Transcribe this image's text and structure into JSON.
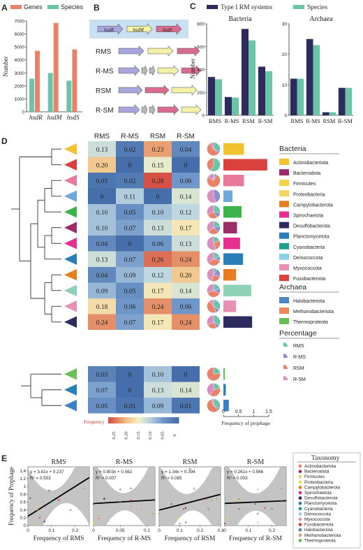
{
  "colors": {
    "genes": "#e8826a",
    "species": "#6cc4a8",
    "type1": "#2d2a5e",
    "hsdR": "#a8a6dc",
    "hsdM": "#f3f1a6",
    "hsdS": "#d96b8e",
    "tiny": "#b8b8b8",
    "shade": "#c9dff2"
  },
  "panelA": {
    "letter": "A",
    "legend": [
      "Genes",
      "Species"
    ],
    "ylabel": "Number",
    "yticks": [
      "0",
      "1000",
      "2000",
      "3000",
      "4000",
      "5000",
      "6000",
      "7000"
    ],
    "chart_data": {
      "type": "bar",
      "categories": [
        "hsdR",
        "hsdM",
        "hsdS"
      ],
      "series": [
        {
          "name": "Genes",
          "values": [
            4700,
            6850,
            4800
          ]
        },
        {
          "name": "Species",
          "values": [
            2550,
            3000,
            2400
          ]
        }
      ],
      "ylim": [
        0,
        7000
      ]
    }
  },
  "panelB": {
    "letter": "B",
    "genes": [
      "hsdR",
      "hsdM",
      "hsdS"
    ],
    "rows": [
      "RMS",
      "R-MS",
      "RSM",
      "R-SM"
    ]
  },
  "panelC": {
    "letter": "C",
    "legend": [
      "Type I RM systems",
      "Species"
    ],
    "ylabel": "Number",
    "bacteria": {
      "title": "Bacteria",
      "yticks": [
        "0",
        "200",
        "400",
        "600",
        "800"
      ],
      "chart_data": {
        "type": "bar",
        "categories": [
          "RMS",
          "R-MS",
          "RSM",
          "R-SM"
        ],
        "series": [
          {
            "name": "Type I RM systems",
            "values": [
              335,
              160,
              755,
              425
            ]
          },
          {
            "name": "Species",
            "values": [
              315,
              155,
              655,
              385
            ]
          }
        ],
        "ylim": [
          0,
          800
        ]
      }
    },
    "archaea": {
      "title": "Archaea",
      "yticks": [
        "0",
        "10",
        "20",
        "30"
      ],
      "chart_data": {
        "type": "bar",
        "categories": [
          "RMS",
          "R-MS",
          "RSM",
          "R-SM"
        ],
        "series": [
          {
            "name": "Type I RM systems",
            "values": [
              12,
              25,
              1,
              9
            ]
          },
          {
            "name": "Species",
            "values": [
              12,
              23,
              1,
              9
            ]
          }
        ],
        "ylim": [
          0,
          30
        ]
      }
    }
  },
  "panelD": {
    "letter": "D",
    "columns": [
      "RMS",
      "R-MS",
      "RSM",
      "R-SM"
    ],
    "chart_data": {
      "type": "heatmap",
      "rows": [
        {
          "taxon": "Actinobacteriota",
          "values": [
            0.13,
            0.02,
            0.23,
            0.04
          ],
          "labels": [
            "0.13",
            "0.02",
            "0.23",
            "0.04"
          ],
          "prophage": 0.68,
          "color": "#f1c232"
        },
        {
          "taxon": "Fusobacteriota",
          "values": [
            0.2,
            0.0,
            0.15,
            0.0
          ],
          "labels": [
            "0.20",
            "0",
            "0.15",
            "0"
          ],
          "prophage": 1.45,
          "color": "#d9413f"
        },
        {
          "taxon": "Myxococcota",
          "values": [
            0.01,
            0.02,
            0.28,
            0.06
          ],
          "labels": [
            "0.01",
            "0.02",
            "0.28",
            "0.06"
          ],
          "prophage": 0.68,
          "color": "#e8799a"
        },
        {
          "taxon": "Halobacteriota",
          "values": [
            0.0,
            0.11,
            0.0,
            0.14
          ],
          "labels": [
            "0",
            "0.11",
            "0",
            "0.14"
          ],
          "prophage": 0.3,
          "color": "#6fa8dc"
        },
        {
          "taxon": "Thermoproteota",
          "values": [
            0.1,
            0.05,
            0.1,
            0.12
          ],
          "labels": [
            "0.10",
            "0.05",
            "0.10",
            "0.12"
          ],
          "prophage": 0.6,
          "color": "#3cb44b"
        },
        {
          "taxon": "Bacteroidota",
          "values": [
            0.1,
            0.07,
            0.13,
            0.17
          ],
          "labels": [
            "0.10",
            "0.07",
            "0.13",
            "0.17"
          ],
          "prophage": 0.45,
          "color": "#9b2d6b"
        },
        {
          "taxon": "Spirochaetota",
          "values": [
            0.04,
            0.0,
            0.06,
            0.13
          ],
          "labels": [
            "0.04",
            "0",
            "0.06",
            "0.13"
          ],
          "prophage": 0.55,
          "color": "#e6308f"
        },
        {
          "taxon": "Planctomycetota",
          "values": [
            0.13,
            0.07,
            0.26,
            0.24
          ],
          "labels": [
            "0.13",
            "0.07",
            "0.26",
            "0.24"
          ],
          "prophage": 0.65,
          "color": "#2a7fb8"
        },
        {
          "taxon": "Campylobacterota",
          "values": [
            0.04,
            0.09,
            0.12,
            0.2
          ],
          "labels": [
            "0.04",
            "0.09",
            "0.12",
            "0.20"
          ],
          "prophage": 0.42,
          "color": "#e67e22"
        },
        {
          "taxon": "Cyanobacteria",
          "values": [
            0.09,
            0.05,
            0.17,
            0.14
          ],
          "labels": [
            "0.09",
            "0.05",
            "0.17",
            "0.14"
          ],
          "prophage": 0.92,
          "color": "#8fd1b8"
        },
        {
          "taxon": "Deinococcota",
          "values": [
            0.18,
            0.06,
            0.24,
            0.06
          ],
          "labels": [
            "0.18",
            "0.06",
            "0.24",
            "0.06"
          ],
          "prophage": 0.42,
          "color": "#e88fb4"
        },
        {
          "taxon": "Desulfobacterota",
          "values": [
            0.24,
            0.07,
            0.17,
            0.24
          ],
          "labels": [
            "0.24",
            "0.07",
            "0.17",
            "0.24"
          ],
          "prophage": 0.95,
          "color": "#2d2a5e"
        },
        {
          "taxon": "Methanobacteriota",
          "values": [
            0.03,
            0.0,
            0.1,
            0.0
          ],
          "labels": [
            "0.03",
            "0",
            "0.10",
            "0"
          ],
          "prophage": 0.05,
          "color": "#6bbf59"
        },
        {
          "taxon": "Proteobacteria",
          "values": [
            0.07,
            0.0,
            0.13,
            0.14
          ],
          "labels": [
            "0.07",
            "0",
            "0.13",
            "0.14"
          ],
          "prophage": 0.08,
          "color": "#2a7fb8"
        },
        {
          "taxon": "Firmicutes",
          "values": [
            0.05,
            0.01,
            0.09,
            0.01
          ],
          "labels": [
            "0.05",
            "0.01",
            "0.09",
            "0.01"
          ],
          "prophage": 0.18,
          "color": "#3b7fc4"
        }
      ]
    },
    "colorbar": {
      "title": "Frequency",
      "ticks": [
        "0.25",
        "0.20",
        "0.15",
        "0.10",
        "0.05",
        "0"
      ]
    },
    "prophage_axis": {
      "title": "Frequency of prophage",
      "ticks": [
        "0",
        "0.5",
        "1",
        "1.5"
      ],
      "max": 1.5
    },
    "legend": {
      "bacteria_title": "Bacteria",
      "bacteria": [
        {
          "name": "Actinobacteriota",
          "color": "#f1c232"
        },
        {
          "name": "Bacteroidota",
          "color": "#9b2d6b"
        },
        {
          "name": "Firmicutes",
          "color": "#f3d24a"
        },
        {
          "name": "Proteobacteria",
          "color": "#f4d35e"
        },
        {
          "name": "Campylobacterota",
          "color": "#e67e22"
        },
        {
          "name": "Spirochaetota",
          "color": "#e6308f"
        },
        {
          "name": "Desulfobacterota",
          "color": "#2d2a5e"
        },
        {
          "name": "Planctomycetota",
          "color": "#2a7fb8"
        },
        {
          "name": "Cyanobacteria",
          "color": "#1f9e8a"
        },
        {
          "name": "Deinococcota",
          "color": "#8fd1e8"
        },
        {
          "name": "Myxococcota",
          "color": "#e88fb4"
        },
        {
          "name": "Fusobacteriota",
          "color": "#d9413f"
        }
      ],
      "archaea_title": "Archaea",
      "archaea": [
        {
          "name": "Halobacteriota",
          "color": "#4f86c6"
        },
        {
          "name": "Methanobacteriota",
          "color": "#e88a5a"
        },
        {
          "name": "Thermoproteota",
          "color": "#6bbf59"
        }
      ],
      "percentage_title": "Percentage",
      "percentage": [
        {
          "name": "RMS",
          "color": "#6cc4a8"
        },
        {
          "name": "R-MS",
          "color": "#8a8fd1"
        },
        {
          "name": "RSM",
          "color": "#e8826a"
        },
        {
          "name": "R-SM",
          "color": "#d98ec0"
        }
      ]
    }
  },
  "panelE": {
    "letter": "E",
    "ylabel": "Frequency of Prophage",
    "yticks": [
      "0",
      "0.2",
      "0.4",
      "0.6",
      "0.8",
      "1",
      "1.2",
      "1.4"
    ],
    "plots": [
      {
        "title": "RMS",
        "xlabel": "Frequency of RMS",
        "eq": "y = 3.81x + 0.237",
        "r2": "R² = 0.553",
        "xticks": [
          "0",
          "0.1",
          "0.2"
        ],
        "xlim": [
          0,
          0.26
        ],
        "slope": 3.81,
        "intercept": 0.237,
        "points": [
          [
            0.0,
            0.3
          ],
          [
            0.01,
            0.7
          ],
          [
            0.03,
            0.05
          ],
          [
            0.04,
            0.5
          ],
          [
            0.04,
            0.4
          ],
          [
            0.05,
            0.2
          ],
          [
            0.07,
            0.1
          ],
          [
            0.09,
            0.9
          ],
          [
            0.1,
            0.6
          ],
          [
            0.1,
            0.45
          ],
          [
            0.13,
            0.7
          ],
          [
            0.13,
            0.65
          ],
          [
            0.18,
            0.4
          ],
          [
            0.2,
            1.45
          ],
          [
            0.24,
            0.95
          ]
        ]
      },
      {
        "title": "R-MS",
        "xlabel": "Frequency of R-MS",
        "eq": "y = 0.803x + 0.562",
        "r2": "R² = 0.007",
        "xticks": [
          "0",
          "0.05",
          "0.1"
        ],
        "xlim": [
          0,
          0.115
        ],
        "slope": 0.803,
        "intercept": 0.562,
        "points": [
          [
            0.0,
            1.45
          ],
          [
            0.0,
            0.55
          ],
          [
            0.0,
            0.05
          ],
          [
            0.0,
            0.08
          ],
          [
            0.01,
            0.18
          ],
          [
            0.02,
            0.7
          ],
          [
            0.02,
            0.68
          ],
          [
            0.05,
            0.6
          ],
          [
            0.05,
            0.92
          ],
          [
            0.06,
            0.42
          ],
          [
            0.07,
            0.45
          ],
          [
            0.07,
            0.65
          ],
          [
            0.07,
            0.95
          ],
          [
            0.09,
            0.42
          ],
          [
            0.11,
            0.3
          ]
        ]
      },
      {
        "title": "RSM",
        "xlabel": "Frequency of RSM",
        "eq": "y = 1.34x + 0.394",
        "r2": "R² = 0.085",
        "xticks": [
          "0",
          "0.1",
          "0.2",
          "0.3"
        ],
        "xlim": [
          0,
          0.3
        ],
        "slope": 1.34,
        "intercept": 0.394,
        "points": [
          [
            0.0,
            0.3
          ],
          [
            0.06,
            0.55
          ],
          [
            0.09,
            0.18
          ],
          [
            0.1,
            0.6
          ],
          [
            0.1,
            0.05
          ],
          [
            0.12,
            0.42
          ],
          [
            0.13,
            0.45
          ],
          [
            0.13,
            0.08
          ],
          [
            0.15,
            1.45
          ],
          [
            0.17,
            0.92
          ],
          [
            0.17,
            0.95
          ],
          [
            0.23,
            0.68
          ],
          [
            0.24,
            0.42
          ],
          [
            0.26,
            0.65
          ],
          [
            0.28,
            0.68
          ]
        ]
      },
      {
        "title": "R-SM",
        "xlabel": "Frequency of R-SM",
        "eq": "y = 0.261x + 0.566",
        "r2": "R² = 0.003",
        "xticks": [
          "0",
          "0.1",
          "0.2"
        ],
        "xlim": [
          0,
          0.26
        ],
        "slope": 0.261,
        "intercept": 0.566,
        "points": [
          [
            0.0,
            1.45
          ],
          [
            0.0,
            0.05
          ],
          [
            0.01,
            0.18
          ],
          [
            0.04,
            0.68
          ],
          [
            0.06,
            0.68
          ],
          [
            0.06,
            0.42
          ],
          [
            0.12,
            0.6
          ],
          [
            0.13,
            0.55
          ],
          [
            0.14,
            0.3
          ],
          [
            0.14,
            0.08
          ],
          [
            0.14,
            0.92
          ],
          [
            0.17,
            0.45
          ],
          [
            0.2,
            0.42
          ],
          [
            0.24,
            0.65
          ],
          [
            0.24,
            0.95
          ]
        ]
      }
    ],
    "taxonomy_title": "Taxonomy",
    "taxonomy": [
      {
        "name": "Actinobacteriota",
        "color": "#e88a5a"
      },
      {
        "name": "Bacteroidota",
        "color": "#9b2d6b"
      },
      {
        "name": "Firmicutes",
        "color": "#f3d24a"
      },
      {
        "name": "Proteobacteria",
        "color": "#f4d35e"
      },
      {
        "name": "Campylobacterota",
        "color": "#e67e22"
      },
      {
        "name": "Spirochaetota",
        "color": "#e6308f"
      },
      {
        "name": "Desulfobacterota",
        "color": "#2d2a5e"
      },
      {
        "name": "Planctomycetota",
        "color": "#2a7fb8"
      },
      {
        "name": "Cyanobacteria",
        "color": "#1f9e8a"
      },
      {
        "name": "Deinococcota",
        "color": "#8fd1e8"
      },
      {
        "name": "Myxococcota",
        "color": "#e88fb4"
      },
      {
        "name": "Fusobacteriota",
        "color": "#d9413f"
      },
      {
        "name": "Halobacteriota",
        "color": "#4f86c6"
      },
      {
        "name": "Methanobacteriota",
        "color": "#e0a070"
      },
      {
        "name": "Thermoproteota",
        "color": "#6bbf59"
      }
    ]
  }
}
